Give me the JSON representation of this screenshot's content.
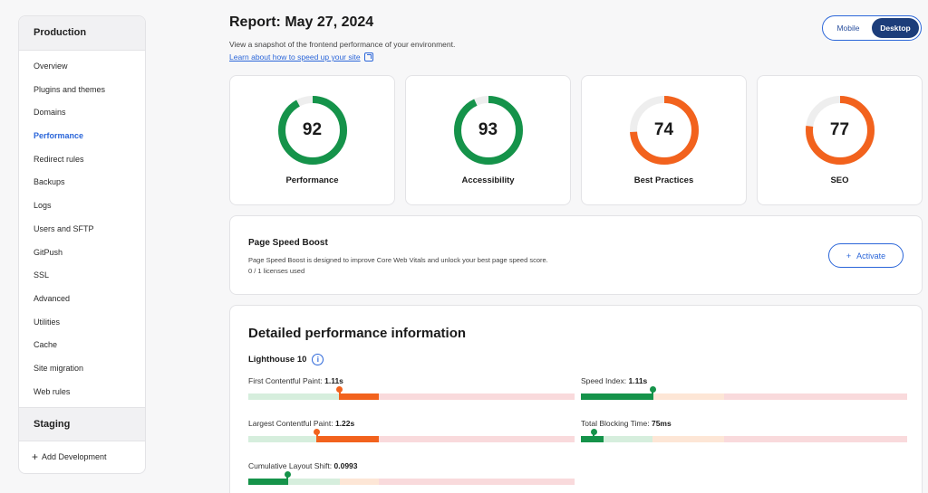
{
  "sidebar": {
    "section": "Production",
    "items": [
      {
        "label": "Overview",
        "active": false
      },
      {
        "label": "Plugins and themes",
        "active": false
      },
      {
        "label": "Domains",
        "active": false
      },
      {
        "label": "Performance",
        "active": true
      },
      {
        "label": "Redirect rules",
        "active": false
      },
      {
        "label": "Backups",
        "active": false
      },
      {
        "label": "Logs",
        "active": false
      },
      {
        "label": "Users and SFTP",
        "active": false
      },
      {
        "label": "GitPush",
        "active": false
      },
      {
        "label": "SSL",
        "active": false
      },
      {
        "label": "Advanced",
        "active": false
      },
      {
        "label": "Utilities",
        "active": false
      },
      {
        "label": "Cache",
        "active": false
      },
      {
        "label": "Site migration",
        "active": false
      },
      {
        "label": "Web rules",
        "active": false
      }
    ],
    "staging": "Staging",
    "add_development": "Add Development"
  },
  "header": {
    "title": "Report: May 27, 2024",
    "subtitle": "View a snapshot of the frontend performance of your environment.",
    "learn_link": "Learn about how to speed up your site"
  },
  "device_toggle": {
    "mobile": "Mobile",
    "desktop": "Desktop",
    "selected": "Desktop"
  },
  "scores": [
    {
      "label": "Performance",
      "value": 92,
      "color": "#15934a"
    },
    {
      "label": "Accessibility",
      "value": 93,
      "color": "#15934a"
    },
    {
      "label": "Best Practices",
      "value": 74,
      "color": "#f2621d"
    },
    {
      "label": "SEO",
      "value": 77,
      "color": "#f2621d"
    }
  ],
  "boost": {
    "title": "Page Speed Boost",
    "description": "Page Speed Boost is designed to improve Core Web Vitals and unlock your best page speed score.",
    "licenses": "0 / 1 licenses used",
    "button": "Activate"
  },
  "detail": {
    "title": "Detailed performance information",
    "lighthouse": "Lighthouse 10",
    "metrics": [
      {
        "label": "First Contentful Paint:",
        "value": "1.11s",
        "status": "orange",
        "fraction": 0.28,
        "fill_start": 0.28,
        "fill_end": 0.4
      },
      {
        "label": "Speed Index:",
        "value": "1.11s",
        "status": "green",
        "fraction": 0.22,
        "fill_start": 0.0,
        "fill_end": 0.22
      },
      {
        "label": "Largest Contentful Paint:",
        "value": "1.22s",
        "status": "orange",
        "fraction": 0.21,
        "fill_start": 0.21,
        "fill_end": 0.4
      },
      {
        "label": "Total Blocking Time:",
        "value": "75ms",
        "status": "green",
        "fraction": 0.04,
        "fill_start": 0.0,
        "fill_end": 0.07
      },
      {
        "label": "Cumulative Layout Shift:",
        "value": "0.0993",
        "status": "green",
        "fraction": 0.12,
        "fill_start": 0.0,
        "fill_end": 0.12
      }
    ]
  },
  "colors": {
    "accent": "#2b66d9",
    "good": "#15934a",
    "average": "#f2621d"
  }
}
